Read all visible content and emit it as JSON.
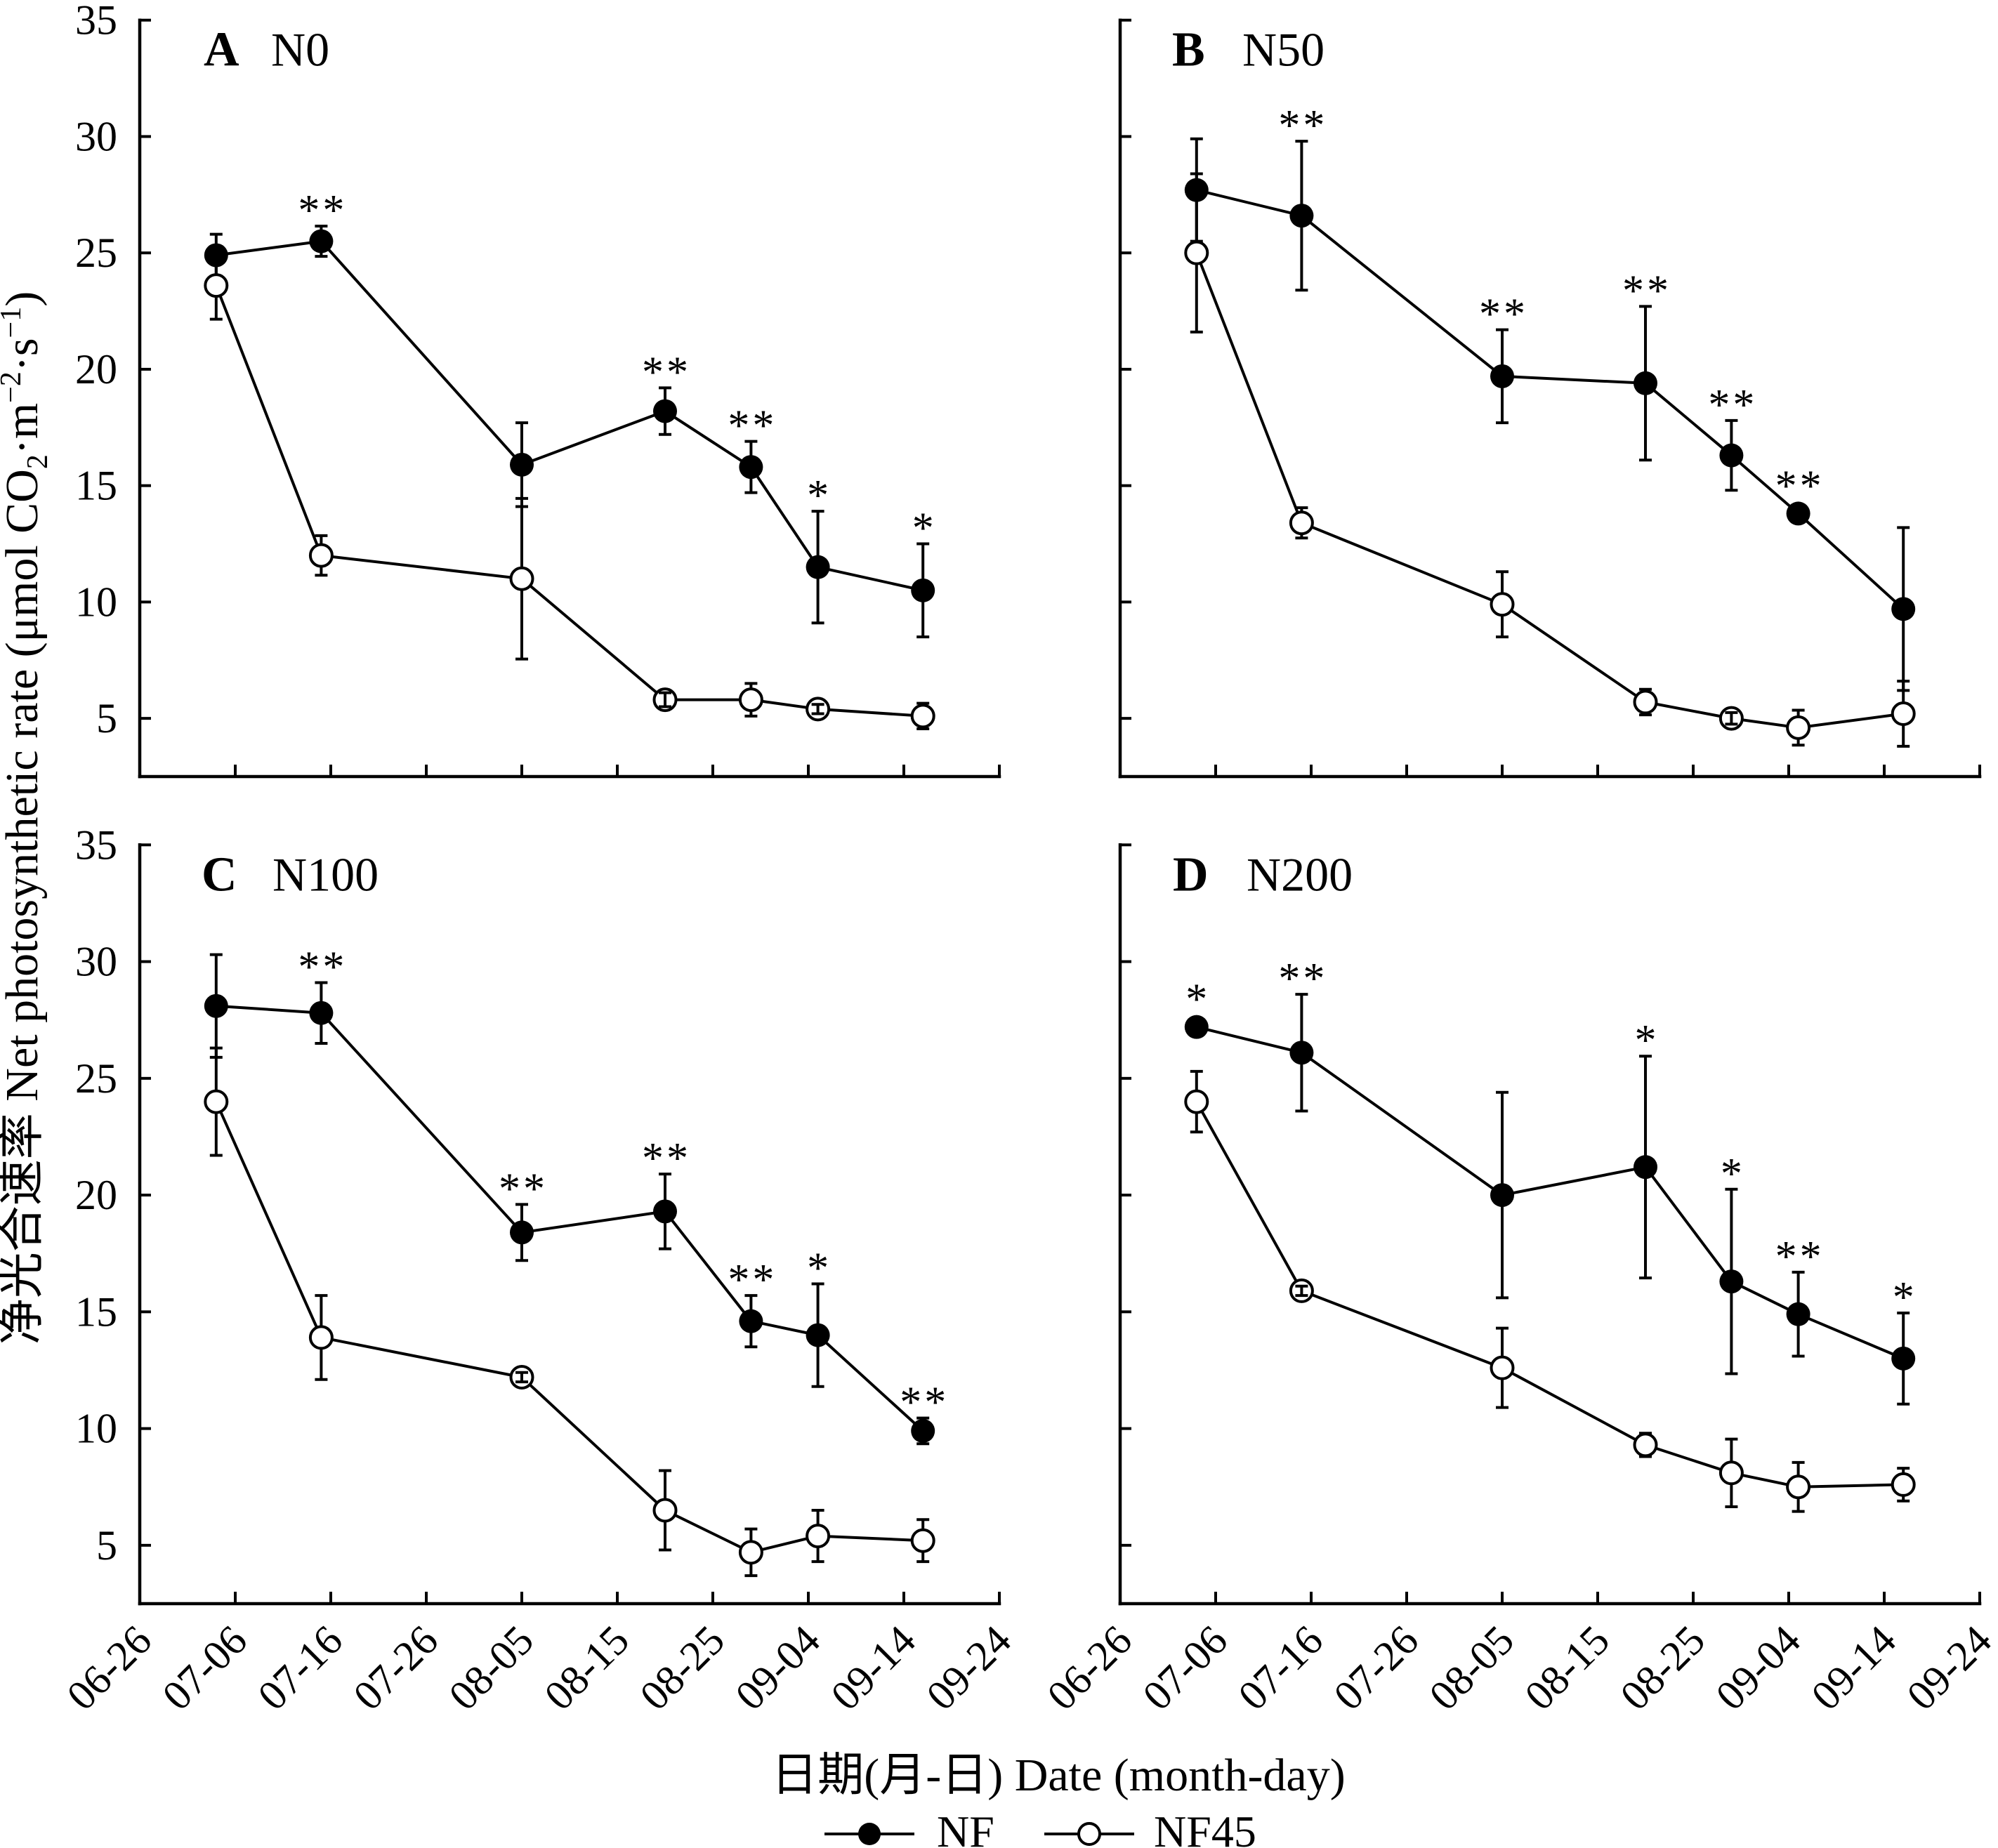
{
  "colors": {
    "ink": "#000000",
    "background": "#ffffff"
  },
  "figure": {
    "y_axis_title": {
      "before": "净光合速率 Net photosynthetic rate (μmol CO",
      "co2_subscript": "2",
      "unit_m": "·m",
      "m_exponent": "−2",
      "unit_s": "·s",
      "s_exponent": "−1",
      "after": ")"
    },
    "x_axis_title": "日期(月-日) Date (month-day)",
    "legend": [
      {
        "label": "NF",
        "marker": "filled-circle"
      },
      {
        "label": "NF45",
        "marker": "open-circle"
      }
    ]
  },
  "chart_data": [
    {
      "type": "line",
      "panel": "A",
      "title": "N0",
      "x": [
        "07-04",
        "07-15",
        "08-05",
        "08-20",
        "08-29",
        "09-05",
        "09-16"
      ],
      "xlim": [
        "06-26",
        "09-24"
      ],
      "xticks": [
        "06-26",
        "07-06",
        "07-16",
        "07-26",
        "08-05",
        "08-15",
        "08-25",
        "09-04",
        "09-14",
        "09-24"
      ],
      "xtick_labels_shown": false,
      "ylim": [
        2.5,
        35
      ],
      "yticks": [
        5,
        10,
        15,
        20,
        25,
        30,
        35
      ],
      "ytick_labels_shown": true,
      "grid": false,
      "series": [
        {
          "name": "NF",
          "marker": "filled-circle",
          "values": [
            24.9,
            25.5,
            15.9,
            18.2,
            15.8,
            11.5,
            10.5
          ],
          "error": [
            0.9,
            0.65,
            1.8,
            1.0,
            1.1,
            2.4,
            2.0
          ]
        },
        {
          "name": "NF45",
          "marker": "open-circle",
          "values": [
            23.6,
            12.0,
            11.0,
            5.8,
            5.8,
            5.4,
            5.1
          ],
          "error": [
            1.45,
            0.85,
            3.45,
            0.3,
            0.7,
            0.2,
            0.55
          ]
        }
      ],
      "significance_series": "NF",
      "significance": [
        "",
        "**",
        "",
        "**",
        "**",
        "*",
        "*"
      ]
    },
    {
      "type": "line",
      "panel": "B",
      "title": "N50",
      "x": [
        "07-04",
        "07-15",
        "08-05",
        "08-20",
        "08-29",
        "09-05",
        "09-16"
      ],
      "xlim": [
        "06-26",
        "09-24"
      ],
      "xticks": [
        "06-26",
        "07-06",
        "07-16",
        "07-26",
        "08-05",
        "08-15",
        "08-25",
        "09-04",
        "09-14",
        "09-24"
      ],
      "xtick_labels_shown": false,
      "ylim": [
        2.5,
        35
      ],
      "yticks": [
        5,
        10,
        15,
        20,
        25,
        30,
        35
      ],
      "ytick_labels_shown": false,
      "grid": false,
      "series": [
        {
          "name": "NF",
          "marker": "filled-circle",
          "values": [
            27.7,
            26.6,
            19.7,
            19.4,
            16.3,
            13.8,
            9.7
          ],
          "error": [
            2.2,
            3.2,
            2.0,
            3.3,
            1.5,
            0.3,
            3.5
          ]
        },
        {
          "name": "NF45",
          "marker": "open-circle",
          "values": [
            25.0,
            13.4,
            9.9,
            5.7,
            5.0,
            4.6,
            5.2
          ],
          "error": [
            3.4,
            0.65,
            1.4,
            0.55,
            0.25,
            0.75,
            1.4
          ]
        }
      ],
      "significance_series": "NF",
      "significance": [
        "",
        "**",
        "**",
        "**",
        "**",
        "**",
        ""
      ]
    },
    {
      "type": "line",
      "panel": "C",
      "title": "N100",
      "x": [
        "07-04",
        "07-15",
        "08-05",
        "08-20",
        "08-29",
        "09-05",
        "09-16"
      ],
      "xlim": [
        "06-26",
        "09-24"
      ],
      "xticks": [
        "06-26",
        "07-06",
        "07-16",
        "07-26",
        "08-05",
        "08-15",
        "08-25",
        "09-04",
        "09-14",
        "09-24"
      ],
      "xtick_labels_shown": true,
      "ylim": [
        2.5,
        35
      ],
      "yticks": [
        5,
        10,
        15,
        20,
        25,
        30,
        35
      ],
      "ytick_labels_shown": true,
      "grid": false,
      "series": [
        {
          "name": "NF",
          "marker": "filled-circle",
          "values": [
            28.1,
            27.8,
            18.4,
            19.3,
            14.6,
            14.0,
            9.9
          ],
          "error": [
            2.2,
            1.3,
            1.2,
            1.6,
            1.1,
            2.2,
            0.55
          ]
        },
        {
          "name": "NF45",
          "marker": "open-circle",
          "values": [
            24.0,
            13.9,
            12.2,
            6.5,
            4.7,
            5.4,
            5.2
          ],
          "error": [
            2.3,
            1.8,
            0.2,
            1.7,
            1.0,
            1.1,
            0.9
          ]
        }
      ],
      "significance_series": "NF",
      "significance": [
        "",
        "**",
        "**",
        "**",
        "**",
        "*",
        "**"
      ]
    },
    {
      "type": "line",
      "panel": "D",
      "title": "N200",
      "x": [
        "07-04",
        "07-15",
        "08-05",
        "08-20",
        "08-29",
        "09-05",
        "09-16"
      ],
      "xlim": [
        "06-26",
        "09-24"
      ],
      "xticks": [
        "06-26",
        "07-06",
        "07-16",
        "07-26",
        "08-05",
        "08-15",
        "08-25",
        "09-04",
        "09-14",
        "09-24"
      ],
      "xtick_labels_shown": true,
      "ylim": [
        2.5,
        35
      ],
      "yticks": [
        5,
        10,
        15,
        20,
        25,
        30,
        35
      ],
      "ytick_labels_shown": false,
      "grid": false,
      "series": [
        {
          "name": "NF",
          "marker": "filled-circle",
          "values": [
            27.2,
            26.1,
            20.0,
            21.2,
            16.3,
            14.9,
            13.0
          ],
          "error": [
            0.3,
            2.5,
            4.4,
            4.75,
            3.95,
            1.8,
            1.95
          ]
        },
        {
          "name": "NF45",
          "marker": "open-circle",
          "values": [
            24.0,
            15.9,
            12.6,
            9.3,
            8.1,
            7.5,
            7.6
          ],
          "error": [
            1.3,
            0.2,
            1.7,
            0.5,
            1.45,
            1.05,
            0.7
          ]
        }
      ],
      "significance_series": "NF",
      "significance": [
        "*",
        "**",
        "",
        "*",
        "*",
        "**",
        "*"
      ]
    }
  ]
}
